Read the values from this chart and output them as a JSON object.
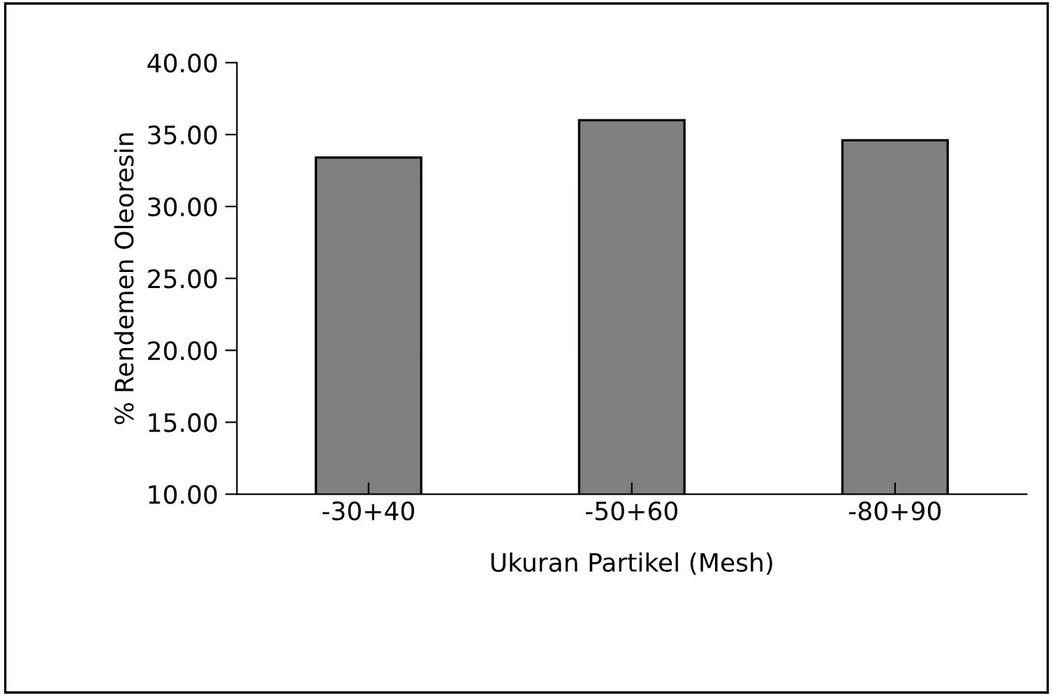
{
  "chart_data": {
    "type": "bar",
    "xlabel": "Ukuran Partikel (Mesh)",
    "ylabel": "% Rendemen Oleoresin",
    "categories": [
      "-30+40",
      "-50+60",
      "-80+90"
    ],
    "values": [
      33.4,
      36.0,
      34.6
    ],
    "color": "#808080",
    "ylim": [
      10,
      40
    ],
    "yticks": [
      {
        "value": 10,
        "label": "10.00"
      },
      {
        "value": 15,
        "label": "15.00"
      },
      {
        "value": 20,
        "label": "20.00"
      },
      {
        "value": 25,
        "label": "25.00"
      },
      {
        "value": 30,
        "label": "30.00"
      },
      {
        "value": 35,
        "label": "35.00"
      },
      {
        "value": 40,
        "label": "40.00"
      }
    ],
    "grid": false,
    "legend": false
  }
}
